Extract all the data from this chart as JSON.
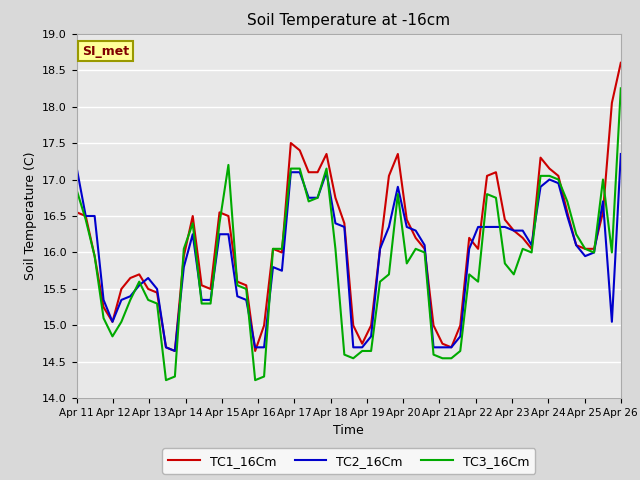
{
  "title": "Soil Temperature at -16cm",
  "xlabel": "Time",
  "ylabel": "Soil Temperature (C)",
  "ylim": [
    14.0,
    19.0
  ],
  "yticks": [
    14.0,
    14.5,
    15.0,
    15.5,
    16.0,
    16.5,
    17.0,
    17.5,
    18.0,
    18.5,
    19.0
  ],
  "bg_color": "#e8e8e8",
  "grid_color": "#ffffff",
  "watermark": "SI_met",
  "x_labels": [
    "Apr 11",
    "Apr 12",
    "Apr 13",
    "Apr 14",
    "Apr 15",
    "Apr 16",
    "Apr 17",
    "Apr 18",
    "Apr 19",
    "Apr 20",
    "Apr 21",
    "Apr 22",
    "Apr 23",
    "Apr 24",
    "Apr 25",
    "Apr 26"
  ],
  "TC1_16Cm": [
    16.55,
    16.5,
    15.95,
    15.25,
    15.05,
    15.5,
    15.65,
    15.7,
    15.5,
    15.45,
    14.7,
    14.65,
    15.95,
    16.5,
    15.55,
    15.5,
    16.55,
    16.5,
    15.6,
    15.55,
    14.65,
    15.0,
    16.05,
    16.0,
    17.5,
    17.4,
    17.1,
    17.1,
    17.35,
    16.75,
    16.4,
    15.0,
    14.75,
    15.0,
    16.05,
    17.05,
    17.35,
    16.45,
    16.2,
    16.05,
    15.0,
    14.75,
    14.7,
    15.0,
    16.2,
    16.05,
    17.05,
    17.1,
    16.45,
    16.3,
    16.2,
    16.05,
    17.3,
    17.15,
    17.05,
    16.55,
    16.1,
    16.05,
    16.05,
    16.55,
    18.05,
    18.6
  ],
  "TC2_16Cm": [
    17.15,
    16.5,
    16.5,
    15.35,
    15.05,
    15.35,
    15.4,
    15.55,
    15.65,
    15.5,
    14.7,
    14.65,
    15.8,
    16.25,
    15.35,
    15.35,
    16.25,
    16.25,
    15.4,
    15.35,
    14.7,
    14.7,
    15.8,
    15.75,
    17.1,
    17.1,
    16.75,
    16.75,
    17.1,
    16.4,
    16.35,
    14.7,
    14.7,
    14.85,
    16.05,
    16.35,
    16.9,
    16.35,
    16.3,
    16.1,
    14.7,
    14.7,
    14.7,
    14.85,
    16.05,
    16.35,
    16.35,
    16.35,
    16.35,
    16.3,
    16.3,
    16.1,
    16.9,
    17.0,
    16.95,
    16.5,
    16.1,
    15.95,
    16.0,
    16.7,
    15.05,
    17.35
  ],
  "TC3_16Cm": [
    16.85,
    16.45,
    15.95,
    15.1,
    14.85,
    15.05,
    15.35,
    15.6,
    15.35,
    15.3,
    14.25,
    14.3,
    16.05,
    16.4,
    15.3,
    15.3,
    16.4,
    17.2,
    15.55,
    15.5,
    14.25,
    14.3,
    16.05,
    16.05,
    17.15,
    17.15,
    16.7,
    16.75,
    17.15,
    16.05,
    14.6,
    14.55,
    14.65,
    14.65,
    15.6,
    15.7,
    16.8,
    15.85,
    16.05,
    16.0,
    14.6,
    14.55,
    14.55,
    14.65,
    15.7,
    15.6,
    16.8,
    16.75,
    15.85,
    15.7,
    16.05,
    16.0,
    17.05,
    17.05,
    17.0,
    16.7,
    16.25,
    16.05,
    16.0,
    17.0,
    16.0,
    18.25
  ],
  "series_colors": {
    "TC1_16Cm": "#cc0000",
    "TC2_16Cm": "#0000cc",
    "TC3_16Cm": "#00aa00"
  },
  "line_width": 1.5,
  "figsize": [
    6.4,
    4.8
  ],
  "dpi": 100
}
